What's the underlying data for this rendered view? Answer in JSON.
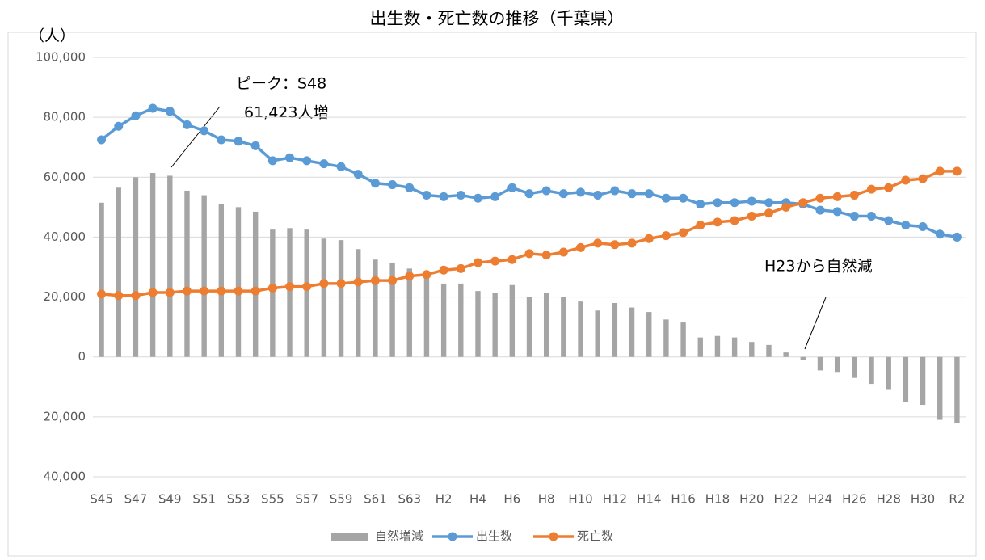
{
  "chart_data": {
    "type": "bar_line",
    "title": "出生数・死亡数の推移（千葉県）",
    "y_label": "（人）",
    "categories": [
      "S45",
      null,
      "S47",
      null,
      "S49",
      null,
      "S51",
      null,
      "S53",
      null,
      "S55",
      null,
      "S57",
      null,
      "S59",
      null,
      "S61",
      null,
      "S63",
      null,
      "H2",
      null,
      "H4",
      null,
      "H6",
      null,
      "H8",
      null,
      "H10",
      null,
      "H12",
      null,
      "H14",
      null,
      "H16",
      null,
      "H18",
      null,
      "H20",
      null,
      "H22",
      null,
      "H24",
      null,
      "H26",
      null,
      "H28",
      null,
      "H30",
      null,
      "R2"
    ],
    "series": [
      {
        "name": "自然増減",
        "type": "bar",
        "color": "#a5a5a5",
        "values": [
          51500,
          56500,
          60000,
          61423,
          60500,
          55500,
          54000,
          51000,
          50000,
          48500,
          42500,
          43000,
          42500,
          39500,
          39000,
          36000,
          32500,
          31500,
          29500,
          26500,
          24500,
          24500,
          22000,
          21500,
          24000,
          20000,
          21500,
          20000,
          18500,
          15500,
          18000,
          16500,
          15000,
          12500,
          11500,
          6500,
          7000,
          6500,
          5000,
          4000,
          1500,
          -1000,
          -4500,
          -5000,
          -7000,
          -9000,
          -11000,
          -15000,
          -16000,
          -21000,
          -22000
        ]
      },
      {
        "name": "出生数",
        "type": "line",
        "color": "#5b9bd5",
        "values": [
          72500,
          77000,
          80500,
          83000,
          82000,
          77500,
          75500,
          72500,
          72000,
          70500,
          65500,
          66500,
          65500,
          64500,
          63500,
          61000,
          58000,
          57500,
          56500,
          54000,
          53500,
          54000,
          53000,
          53500,
          56500,
          54500,
          55500,
          54500,
          55000,
          54000,
          55500,
          54500,
          54500,
          53000,
          53000,
          51000,
          51500,
          51500,
          52000,
          51500,
          51500,
          51000,
          49000,
          48500,
          47000,
          47000,
          45500,
          44000,
          43500,
          41000,
          40000
        ]
      },
      {
        "name": "死亡数",
        "type": "line",
        "color": "#ed7d31",
        "values": [
          21000,
          20500,
          20500,
          21500,
          21500,
          22000,
          22000,
          22000,
          22000,
          22000,
          23000,
          23500,
          23500,
          24500,
          24500,
          25000,
          25500,
          25500,
          27000,
          27500,
          29000,
          29500,
          31500,
          32000,
          32500,
          34500,
          34000,
          35000,
          36500,
          38000,
          37500,
          38000,
          39500,
          40500,
          41500,
          44000,
          45000,
          45500,
          47000,
          48000,
          50000,
          51500,
          53000,
          53500,
          54000,
          56000,
          56500,
          59000,
          59500,
          62000,
          62000
        ]
      }
    ],
    "ylim": [
      -40000,
      100000
    ],
    "yticks": [
      {
        "value": -40000,
        "label": "40,000"
      },
      {
        "value": -20000,
        "label": "20,000"
      },
      0,
      {
        "value": 20000,
        "label": "20,000"
      },
      {
        "value": 40000,
        "label": "40,000"
      },
      {
        "value": 60000,
        "label": "60,000"
      },
      {
        "value": 80000,
        "label": "80,000"
      },
      {
        "value": 100000,
        "label": "100,000"
      }
    ],
    "grid": true,
    "legend": "bottom",
    "annotations": [
      "ピーク：S48",
      "61,423人増",
      "H23から自然減"
    ]
  }
}
